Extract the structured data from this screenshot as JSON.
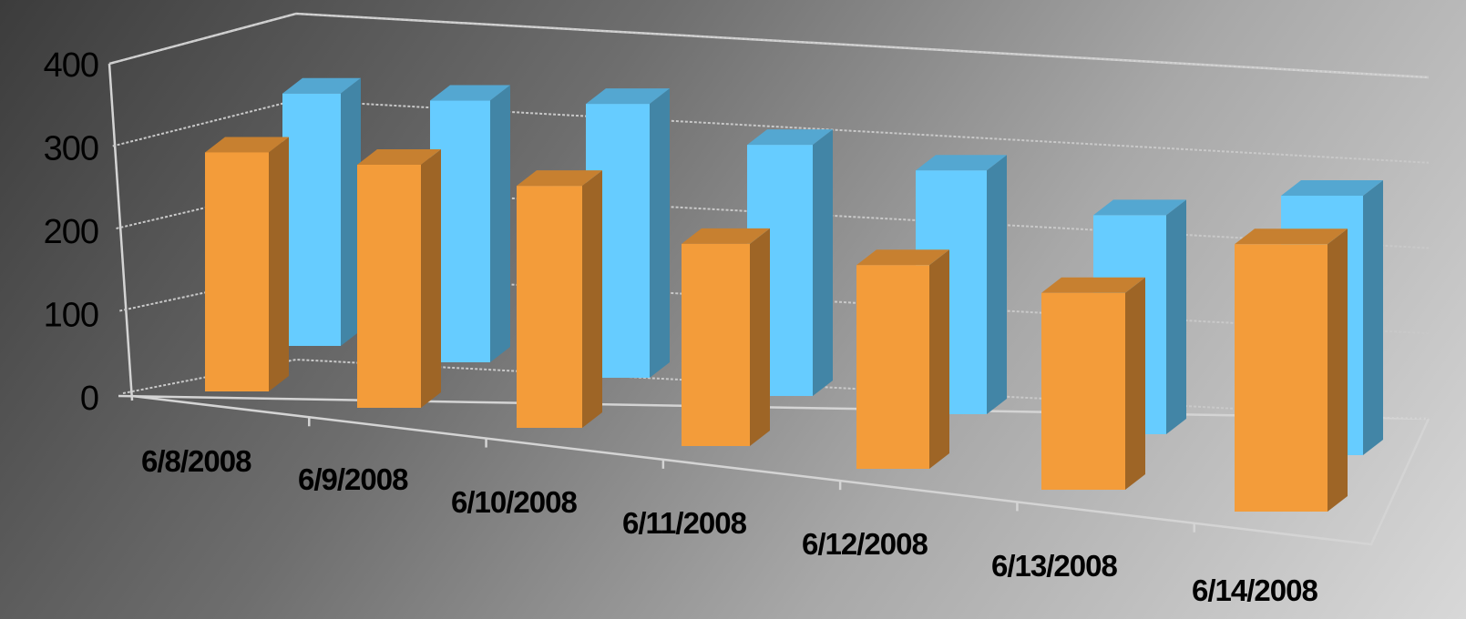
{
  "chart_data": {
    "type": "bar",
    "subtype": "3d-column",
    "categories": [
      "6/8/2008",
      "6/9/2008",
      "6/10/2008",
      "6/11/2008",
      "6/12/2008",
      "6/13/2008",
      "6/14/2008"
    ],
    "series": [
      {
        "values": [
          335,
          340,
          345,
          310,
          295,
          265,
          305
        ],
        "color": "#66ccff"
      },
      {
        "values": [
          295,
          300,
          290,
          240,
          235,
          215,
          275
        ],
        "color": "#f39c3a"
      }
    ],
    "y_ticks": [
      "0",
      "100",
      "200",
      "300",
      "400"
    ],
    "ylim": [
      0,
      400
    ],
    "grid": true,
    "legend": "none"
  }
}
